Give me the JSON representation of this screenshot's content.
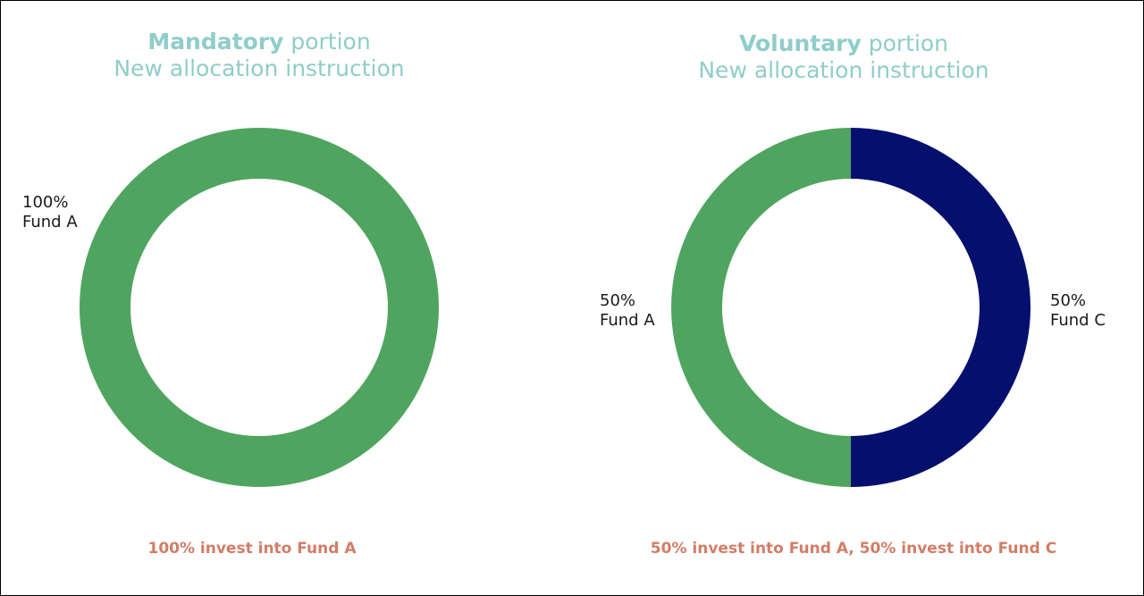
{
  "colors": {
    "fund_a": "#4fa55f",
    "fund_c": "#040f6e",
    "title": "#8fcdc9",
    "caption": "#d27d66"
  },
  "chart_data": [
    {
      "type": "pie",
      "title_bold": "Mandatory",
      "title_rest": " portion",
      "subtitle": "New allocation instruction",
      "slices": [
        {
          "label": "Fund A",
          "value": 100,
          "value_label": "100%",
          "color": "#4fa55f"
        }
      ],
      "caption": "100% invest into Fund A"
    },
    {
      "type": "pie",
      "title_bold": "Voluntary",
      "title_rest": " portion",
      "subtitle": "New allocation instruction",
      "slices": [
        {
          "label": "Fund C",
          "value": 50,
          "value_label": "50%",
          "color": "#040f6e"
        },
        {
          "label": "Fund A",
          "value": 50,
          "value_label": "50%",
          "color": "#4fa55f"
        }
      ],
      "caption": "50% invest into Fund A, 50% invest into Fund C"
    }
  ]
}
